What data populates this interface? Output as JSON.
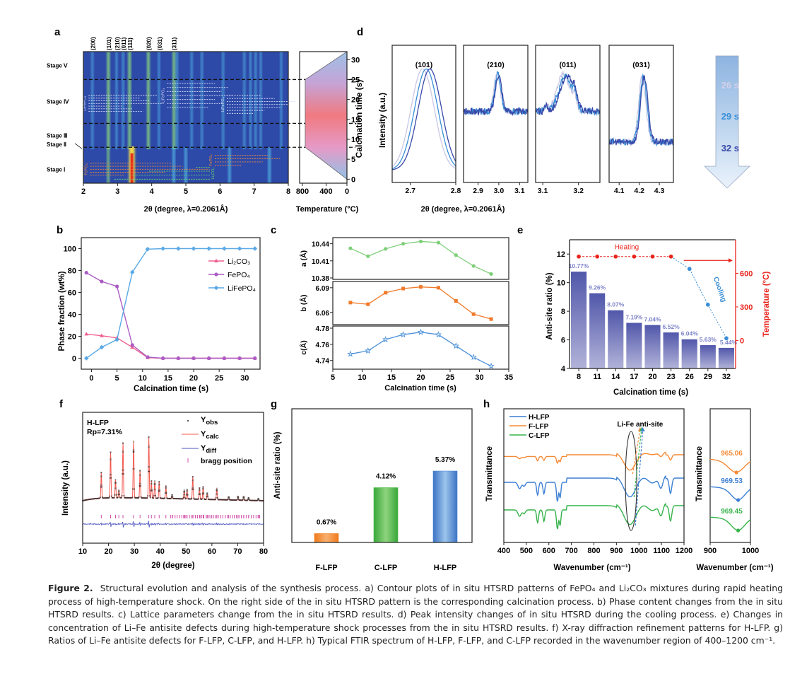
{
  "figure": {
    "caption_label": "Figure 2.",
    "caption_text": "Structural evolution and analysis of the synthesis process. a) Contour plots of in situ HTSRD patterns of FePO₄ and Li₂CO₃ mixtures during rapid heating process of high-temperature shock. On the right side of the in situ HTSRD pattern is the corresponding calcination process. b) Phase content changes from the in situ HTSRD results. c) Lattice parameters change from the in situ HTSRD results. d) Peak intensity changes of in situ HTSRD during the cooling process. e) Changes in concentration of Li–Fe antisite defects during high-temperature shock processes from the in situ HTSRD results. f) X-ray diffraction refinement patterns for H-LFP. g) Ratios of Li–Fe antisite defects for F-LFP, C-LFP, and H-LFP. h) Typical FTIR spectrum of H-LFP, F-LFP, and C-LFP recorded in the wavenumber region of 400–1200 cm⁻¹."
  },
  "chart_data": [
    {
      "panel": "a",
      "type": "heatmap",
      "title": "",
      "xlabel": "2θ (degree, λ=0.2061Å)",
      "xlim": [
        2,
        8
      ],
      "xticks": [
        2,
        3,
        4,
        5,
        6,
        7,
        8
      ],
      "peak_labels": [
        {
          "hkl": "(200)",
          "x": 2.27
        },
        {
          "hkl": "(101)",
          "x": 2.73
        },
        {
          "hkl": "(210)",
          "x": 2.98
        },
        {
          "hkl": "(011)",
          "x": 3.17
        },
        {
          "hkl": "(111)",
          "x": 3.35
        },
        {
          "hkl": "(020)",
          "x": 3.9
        },
        {
          "hkl": "(031)",
          "x": 4.22
        },
        {
          "hkl": "(311)",
          "x": 4.65
        }
      ],
      "stages": [
        {
          "label": "Stage Ⅴ",
          "from": 25,
          "to": 32
        },
        {
          "label": "Stage Ⅳ",
          "from": 14,
          "to": 25
        },
        {
          "label": "Stage Ⅲ",
          "from": 8,
          "to": 14
        },
        {
          "label": "Stage Ⅱ",
          "at": 8
        },
        {
          "label": "Stage Ⅰ",
          "from": 0,
          "to": 8
        }
      ],
      "stage_boundaries_s": [
        8,
        14,
        25
      ],
      "phase_annotations": [
        "LiFePO₄",
        "LiFePO₄",
        "LiFePO₄",
        "FePO₄",
        "FePO₄",
        "Li₂CO₃"
      ],
      "lines_upper": [
        2.27,
        2.73,
        2.98,
        3.17,
        3.35,
        3.9,
        4.22,
        4.65,
        4.75,
        5.18,
        5.48,
        6.1,
        6.72,
        6.9,
        7.05,
        7.2,
        7.8
      ],
      "lines_lower": [
        2.73,
        3.42,
        4.65,
        5.0,
        6.28,
        7.45
      ],
      "temperature_panel": {
        "xlabel": "Temperature (°C)",
        "xticks": [
          "800",
          "400",
          "0"
        ],
        "ylabel": "Calcination time (s)",
        "yticks": [
          0,
          5,
          10,
          15,
          20,
          25,
          30
        ],
        "ylim": [
          -1,
          32
        ],
        "profile": [
          {
            "t": 0,
            "T": 0
          },
          {
            "t": 8,
            "T": 750
          },
          {
            "t": 25,
            "T": 750
          },
          {
            "t": 32,
            "T": 0
          }
        ]
      }
    },
    {
      "panel": "b",
      "type": "line",
      "xlabel": "Calcination time (s)",
      "ylabel": "Phase fraction (wt%)",
      "xlim": [
        -2,
        33
      ],
      "ylim": [
        -10,
        110
      ],
      "xticks": [
        0,
        5,
        10,
        15,
        20,
        25,
        30
      ],
      "yticks": [
        0,
        20,
        40,
        60,
        80,
        100
      ],
      "legend": "top-right",
      "x": [
        -1,
        2,
        5,
        8,
        11,
        14,
        17,
        20,
        23,
        26,
        29,
        32
      ],
      "series": [
        {
          "name": "Li₂CO₃",
          "color": "#f06292",
          "marker": "triangle",
          "values": [
            22,
            20.5,
            18.5,
            10,
            0.5,
            0,
            0,
            0,
            0,
            0,
            0,
            0
          ]
        },
        {
          "name": "FePO₄",
          "color": "#ab5cc4",
          "marker": "circle",
          "values": [
            78,
            70,
            65.5,
            12,
            1,
            0,
            0,
            0,
            0,
            0,
            0,
            0
          ]
        },
        {
          "name": "LiFePO₄",
          "color": "#5aa9e6",
          "marker": "diamond",
          "values": [
            0,
            10,
            17,
            78.5,
            99.5,
            100,
            100,
            100,
            100,
            100,
            100,
            100
          ]
        }
      ]
    },
    {
      "panel": "c",
      "type": "line",
      "xlabel": "Calcination time (s)",
      "xlim": [
        5,
        35
      ],
      "xticks": [
        5,
        10,
        15,
        20,
        25,
        30,
        35
      ],
      "x": [
        8,
        11,
        14,
        17,
        20,
        23,
        26,
        29,
        32
      ],
      "subplots": [
        {
          "ylabel": "a (Å)",
          "color": "#7fcf7a",
          "marker": "circle",
          "ylim": [
            10.38,
            10.447
          ],
          "yticks": [
            10.38,
            10.41,
            10.44
          ],
          "values": [
            10.432,
            10.418,
            10.431,
            10.44,
            10.444,
            10.442,
            10.42,
            10.401,
            10.387
          ]
        },
        {
          "ylabel": "b (Å)",
          "color": "#f07a2a",
          "marker": "square",
          "ylim": [
            6.047,
            6.095
          ],
          "yticks": [
            6.06,
            6.09
          ],
          "values": [
            6.072,
            6.07,
            6.084,
            6.089,
            6.091,
            6.09,
            6.074,
            6.058,
            6.052
          ]
        },
        {
          "ylabel": "c(Å)",
          "color": "#4a90d9",
          "marker": "star",
          "ylim": [
            4.731,
            4.78
          ],
          "yticks": [
            4.74,
            4.76,
            4.78
          ],
          "values": [
            4.748,
            4.752,
            4.766,
            4.772,
            4.775,
            4.772,
            4.758,
            4.744,
            4.733
          ]
        }
      ]
    },
    {
      "panel": "d",
      "type": "line",
      "ylabel": "Intensity (a.u.)",
      "xlabel": "2θ (degree, λ=0.2061Å)",
      "subplots": [
        {
          "title": "(101)",
          "xlim": [
            2.66,
            2.8
          ],
          "xticks": [
            "2.7",
            "2.8"
          ],
          "peak": 2.735,
          "width": 0.02,
          "shift": 0.005,
          "noise": false
        },
        {
          "title": "(210)",
          "xlim": [
            2.83,
            3.14
          ],
          "xticks": [
            "2.9",
            "3.0",
            "3.1"
          ],
          "peak": 2.995,
          "width": 0.015,
          "shift": 0.004,
          "noise": true
        },
        {
          "title": "(011)",
          "xlim": [
            3.08,
            3.26
          ],
          "xticks": [
            "3.1",
            "3.2"
          ],
          "peak": 3.163,
          "width": 0.018,
          "shift": 0.005,
          "noise": true
        },
        {
          "title": "(031)",
          "xlim": [
            4.05,
            4.37
          ],
          "xticks": [
            "4.1",
            "4.2",
            "4.3"
          ],
          "peak": 4.22,
          "width": 0.018,
          "shift": 0.005,
          "noise": true
        }
      ],
      "series": [
        {
          "name": "26 s",
          "color": "#c9c7e6"
        },
        {
          "name": "29 s",
          "color": "#3a8fd6"
        },
        {
          "name": "32 s",
          "color": "#3848a8"
        }
      ]
    },
    {
      "panel": "e",
      "type": "bar",
      "xlabel": "Calcination time (s)",
      "ylabel": "Anti-site ratio (%)",
      "y2label": "Temperature (°C)",
      "categories": [
        "8",
        "11",
        "14",
        "17",
        "20",
        "23",
        "26",
        "29",
        "32"
      ],
      "values": [
        10.77,
        9.26,
        8.07,
        7.19,
        7.04,
        6.52,
        6.04,
        5.63,
        5.44
      ],
      "data_labels": [
        "10.77%",
        "9.26%",
        "8.07%",
        "7.19%",
        "7.04%",
        "6.52%",
        "6.04%",
        "5.63%",
        "5.44%"
      ],
      "ylim": [
        4,
        13
      ],
      "yticks": [
        4,
        6,
        8,
        10,
        12
      ],
      "y2lim": [
        -250,
        900
      ],
      "y2ticks": [
        0,
        300,
        600
      ],
      "temperature": [
        750,
        750,
        750,
        750,
        750,
        750,
        640,
        320,
        20
      ],
      "annotations": {
        "heating": "Heating",
        "cooling": "Cooling"
      },
      "colors": {
        "bar": "#5a5fb0",
        "heating": "#e8241c",
        "cooling": "#3a8fd6"
      }
    },
    {
      "panel": "f",
      "type": "line",
      "xlabel": "2θ (degree)",
      "ylabel": "Intensity (a.u.)",
      "xlim": [
        10,
        80
      ],
      "xticks": [
        10,
        20,
        30,
        40,
        50,
        60,
        70,
        80
      ],
      "sample": "H-LFP",
      "rp": "Rp=7.31%",
      "legend": [
        "Y_obs",
        "Y_calc",
        "Y_diff",
        "bragg position"
      ],
      "peaks": [
        [
          17.2,
          0.42
        ],
        [
          20.8,
          0.75
        ],
        [
          22.7,
          0.3
        ],
        [
          24.0,
          0.12
        ],
        [
          25.6,
          0.9
        ],
        [
          29.7,
          0.93
        ],
        [
          32.2,
          0.45
        ],
        [
          35.6,
          1.0
        ],
        [
          36.6,
          0.28
        ],
        [
          37.9,
          0.28
        ],
        [
          39.6,
          0.27
        ],
        [
          42.2,
          0.2
        ],
        [
          44.6,
          0.06
        ],
        [
          49.3,
          0.14
        ],
        [
          50.4,
          0.15
        ],
        [
          52.6,
          0.36
        ],
        [
          55.2,
          0.18
        ],
        [
          56.6,
          0.2
        ],
        [
          58.2,
          0.1
        ],
        [
          61.9,
          0.18
        ],
        [
          66.5,
          0.05
        ],
        [
          70.1,
          0.06
        ],
        [
          72.3,
          0.06
        ],
        [
          74.2,
          0.04
        ],
        [
          78.0,
          0.03
        ]
      ]
    },
    {
      "panel": "g",
      "type": "bar",
      "ylabel": "Anti-site ratio (%)",
      "categories": [
        "F-LFP",
        "C-LFP",
        "H-LFP"
      ],
      "values": [
        0.67,
        4.12,
        5.37
      ],
      "data_labels": [
        "0.67%",
        "4.12%",
        "5.37%"
      ],
      "ylim": [
        0,
        10
      ],
      "colors": [
        "#f5872d",
        "#4cb944",
        "#4a86d4"
      ]
    },
    {
      "panel": "h",
      "type": "line",
      "xlabel": "Wavenumber (cm⁻¹)",
      "ylabel": "Transmittance",
      "xlim": [
        400,
        1200
      ],
      "xticks": [
        400,
        500,
        600,
        700,
        800,
        900,
        1000,
        1100,
        1200
      ],
      "legend": "top-left",
      "annotation": "Li-Fe anti-site",
      "series": [
        {
          "name": "H-LFP",
          "color": "#3b7fd4"
        },
        {
          "name": "F-LFP",
          "color": "#f58a36"
        },
        {
          "name": "C-LFP",
          "color": "#35b34a"
        }
      ],
      "inset": {
        "xlim": [
          900,
          1000
        ],
        "xticks": [
          900,
          1000
        ],
        "xlabel": "Wavenumber (cm⁻¹)",
        "ylabel": "Transmittance",
        "minima": [
          {
            "name": "F-LFP",
            "value": "965.06",
            "color": "#f58a36"
          },
          {
            "name": "H-LFP",
            "value": "969.53",
            "color": "#3b7fd4"
          },
          {
            "name": "C-LFP",
            "value": "969.45",
            "color": "#35b34a"
          }
        ]
      }
    }
  ],
  "panel_letters": [
    "a",
    "b",
    "c",
    "d",
    "e",
    "f",
    "g",
    "h"
  ]
}
